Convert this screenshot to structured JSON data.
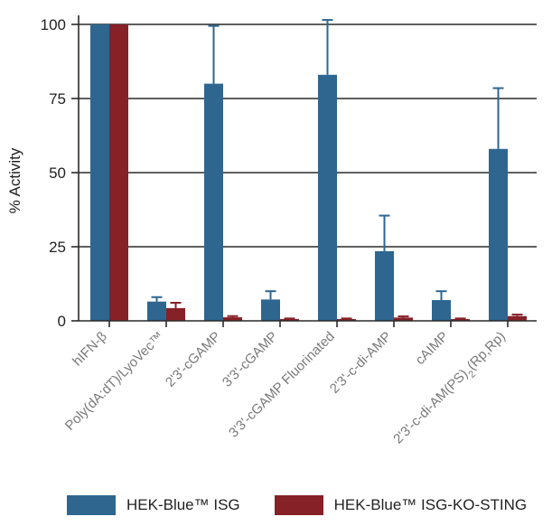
{
  "chart_data": {
    "type": "bar",
    "title": "",
    "xlabel": "",
    "ylabel": "% Activity",
    "ylim": [
      0,
      100
    ],
    "yticks": [
      0,
      25,
      50,
      75,
      100
    ],
    "grid": true,
    "legend_position": "bottom",
    "categories": [
      "hIFN-β",
      "Poly(dA:dT)/LyoVec™",
      "2'3'-cGAMP",
      "3'3'-cGAMP",
      "3'3'-cGAMP Fluorinated",
      "2'3'-c-di-AMP",
      "cAIMP",
      "2'3'-c-di-AM(PS)2(Rp,Rp)"
    ],
    "series": [
      {
        "name": "HEK-Blue™ ISG",
        "color": "#2e6690",
        "values": [
          100,
          6.5,
          80,
          7.2,
          83,
          23.5,
          7,
          58
        ],
        "errors": [
          0,
          1.5,
          19.5,
          2.8,
          18.5,
          12,
          3,
          20.5
        ]
      },
      {
        "name": "HEK-Blue™ ISG-KO-STING",
        "color": "#862127",
        "values": [
          100,
          4.3,
          1.2,
          0.6,
          0.6,
          1.1,
          0.6,
          1.6
        ],
        "errors": [
          0,
          1.8,
          0.4,
          0.2,
          0.2,
          0.4,
          0.2,
          0.5
        ]
      }
    ]
  }
}
